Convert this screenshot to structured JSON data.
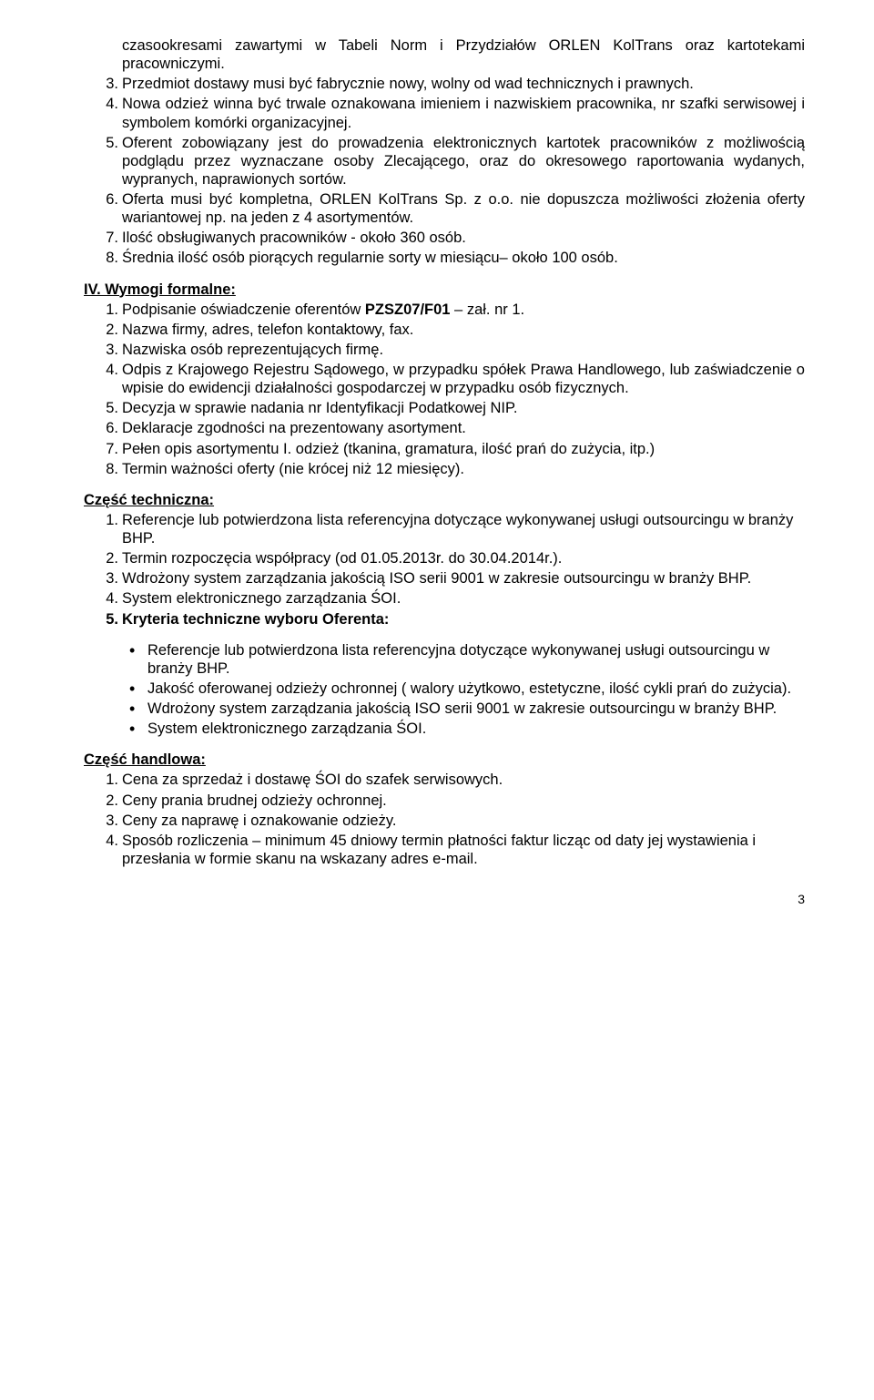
{
  "top_list": {
    "start_label": "3.",
    "items": [
      {
        "n": "",
        "text": "czasookresami zawartymi w Tabeli Norm i Przydziałów ORLEN KolTrans oraz kartotekami pracowniczymi."
      },
      {
        "n": "3.",
        "text": "Przedmiot dostawy musi być fabrycznie nowy, wolny od wad technicznych i prawnych."
      },
      {
        "n": "4.",
        "text": "Nowa odzież winna być trwale oznakowana imieniem i nazwiskiem pracownika, nr szafki serwisowej i symbolem komórki organizacyjnej."
      },
      {
        "n": "5.",
        "text": "Oferent zobowiązany jest do prowadzenia elektronicznych kartotek pracowników z możliwością podglądu przez wyznaczane osoby Zlecającego, oraz do okresowego raportowania wydanych, wypranych, naprawionych sortów."
      },
      {
        "n": "6.",
        "text": "Oferta musi być kompletna, ORLEN KolTrans Sp. z o.o. nie dopuszcza możliwości złożenia oferty wariantowej np. na jeden z 4 asortymentów."
      },
      {
        "n": "7.",
        "text": "Ilość obsługiwanych pracowników - około 360 osób."
      },
      {
        "n": "8.",
        "text": "Średnia ilość osób piorących regularnie sorty w miesiącu– około 100 osób."
      }
    ]
  },
  "section_iv": {
    "heading": "IV. Wymogi formalne:",
    "items": [
      {
        "n": "1.",
        "text_pre": "Podpisanie oświadczenie oferentów ",
        "bold": "PZSZ07/F01",
        "text_post": " – zał. nr 1."
      },
      {
        "n": "2.",
        "text": "Nazwa firmy, adres, telefon kontaktowy, fax."
      },
      {
        "n": "3.",
        "text": "Nazwiska osób reprezentujących firmę."
      },
      {
        "n": "4.",
        "text": "Odpis z Krajowego Rejestru Sądowego, w przypadku spółek Prawa Handlowego, lub zaświadczenie o wpisie do ewidencji działalności gospodarczej w przypadku osób fizycznych."
      },
      {
        "n": "5.",
        "text": "Decyzja w sprawie nadania nr Identyfikacji Podatkowej NIP."
      },
      {
        "n": "6.",
        "text": "Deklaracje zgodności na prezentowany asortyment."
      },
      {
        "n": "7.",
        "text": "Pełen opis asortymentu I. odzież (tkanina, gramatura, ilość prań do zużycia, itp.)"
      },
      {
        "n": "8.",
        "text": "Termin ważności oferty (nie krócej niż 12 miesięcy)."
      }
    ]
  },
  "section_tech": {
    "heading": "Część techniczna:",
    "items": [
      {
        "n": "1.",
        "text": "Referencje lub potwierdzona lista referencyjna dotyczące wykonywanej usługi outsourcingu w branży BHP."
      },
      {
        "n": "2.",
        "text": "Termin rozpoczęcia współpracy (od 01.05.2013r. do 30.04.2014r.)."
      },
      {
        "n": "3.",
        "text": "Wdrożony system zarządzania jakością ISO serii 9001 w zakresie outsourcingu w branży BHP."
      },
      {
        "n": "4.",
        "text": "System elektronicznego zarządzania ŚOI."
      },
      {
        "n": "5.",
        "text": "Kryteria techniczne wyboru Oferenta:",
        "bold_all": true
      }
    ],
    "bullets": [
      "Referencje lub potwierdzona lista referencyjna dotyczące wykonywanej usługi outsourcingu w branży BHP.",
      "Jakość oferowanej odzieży ochronnej ( walory użytkowo, estetyczne, ilość cykli prań do zużycia).",
      "Wdrożony system zarządzania jakością ISO serii 9001 w zakresie outsourcingu w branży BHP.",
      "System elektronicznego zarządzania ŚOI."
    ]
  },
  "section_handl": {
    "heading": "Część handlowa:",
    "items": [
      {
        "n": "1.",
        "text": "Cena za sprzedaż i dostawę ŚOI do szafek serwisowych."
      },
      {
        "n": "2.",
        "text": "Ceny prania brudnej odzieży ochronnej."
      },
      {
        "n": "3.",
        "text": "Ceny za naprawę i oznakowanie odzieży."
      },
      {
        "n": "4.",
        "text": "Sposób rozliczenia – minimum 45 dniowy termin płatności faktur licząc od daty jej wystawienia i przesłania w formie skanu na wskazany adres e-mail."
      }
    ]
  },
  "page_number": "3"
}
